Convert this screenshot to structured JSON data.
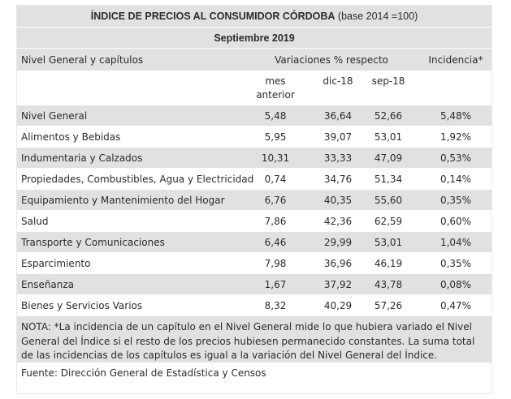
{
  "title": {
    "bold": "ÍNDICE DE PRECIOS AL CONSUMIDOR CÓRDOBA",
    "rest": " (base 2014 =100)"
  },
  "period": "Septiembre 2019",
  "header": {
    "col_name": "Nivel General y capítulos",
    "col_variations": "Variaciones % respecto",
    "col_incidence": "Incidencia*",
    "sub_month_line1": "mes",
    "sub_month_line2": "anterior",
    "sub_dec": "dic-18",
    "sub_sep": "sep-18"
  },
  "rows": [
    {
      "name": "Nivel General",
      "mes": "5,48",
      "dic": "36,64",
      "sep": "52,66",
      "inc": "5,48%"
    },
    {
      "name": "Alimentos y Bebidas",
      "mes": "5,95",
      "dic": "39,07",
      "sep": "53,01",
      "inc": "1,92%"
    },
    {
      "name": "Indumentaria y Calzados",
      "mes": "10,31",
      "dic": "33,33",
      "sep": "47,09",
      "inc": "0,53%"
    },
    {
      "name": "Propiedades, Combustibles, Agua y Electricidad",
      "mes": "0,74",
      "dic": "34,76",
      "sep": "51,34",
      "inc": "0,14%"
    },
    {
      "name": "Equipamiento y Mantenimiento del Hogar",
      "mes": "6,76",
      "dic": "40,35",
      "sep": "55,60",
      "inc": "0,35%"
    },
    {
      "name": "Salud",
      "mes": "7,86",
      "dic": "42,36",
      "sep": "62,59",
      "inc": "0,60%"
    },
    {
      "name": "Transporte y Comunicaciones",
      "mes": "6,46",
      "dic": "29,99",
      "sep": "53,01",
      "inc": "1,04%"
    },
    {
      "name": "Esparcimiento",
      "mes": "7,98",
      "dic": "36,96",
      "sep": "46,19",
      "inc": "0,35%"
    },
    {
      "name": "Enseñanza",
      "mes": "1,67",
      "dic": "37,92",
      "sep": "43,78",
      "inc": "0,08%"
    },
    {
      "name": "Bienes y Servicios Varios",
      "mes": "8,32",
      "dic": "40,29",
      "sep": "57,26",
      "inc": "0,47%"
    }
  ],
  "note": "NOTA: *La incidencia de un capítulo en el Nivel General mide lo que hubiera variado el Nivel General del Índice si el resto de los precios hubiesen permanecido constantes. La suma total de las incidencias de los capítulos es igual a la variación del Nivel General del Índice.",
  "source": "Fuente: Dirección General de Estadística y Censos",
  "colors": {
    "row_grey": "#e1e1e1",
    "row_white": "#ffffff",
    "text": "#2b2b2b"
  }
}
